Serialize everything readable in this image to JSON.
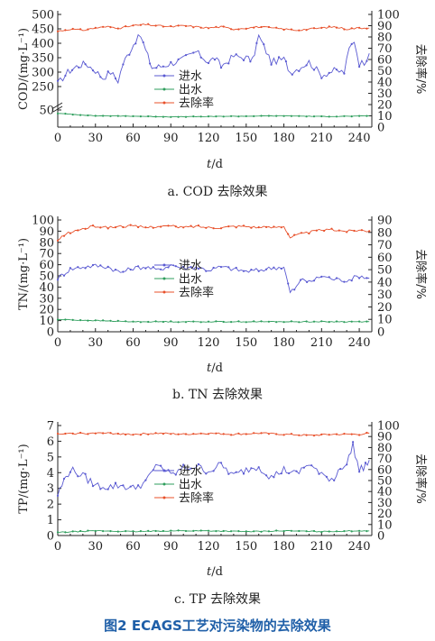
{
  "figure_caption": "图2 ECAGS工艺对污染物的去除效果",
  "colors": {
    "influent": "#5a5ad2",
    "effluent": "#2e9e5c",
    "removal": "#e8502a",
    "axis": "#222222"
  },
  "chart_data": [
    {
      "type": "line",
      "caption": "a. COD 去除效果",
      "xlabel_italic": "t",
      "xlabel_unit": "/d",
      "ylabel": "COD/(mg·L⁻¹)",
      "y2label": "去除率/%",
      "xlim": [
        0,
        250
      ],
      "xticks": [
        0,
        30,
        60,
        90,
        120,
        150,
        180,
        210,
        240
      ],
      "ylim_upper": [
        200,
        500
      ],
      "yticks_upper": [
        250,
        300,
        350,
        400,
        450,
        500
      ],
      "ylim_lower": [
        0,
        50
      ],
      "yticks_lower": [
        50
      ],
      "axis_break": true,
      "y2lim": [
        0,
        100
      ],
      "y2ticks": [
        0,
        10,
        20,
        30,
        40,
        50,
        60,
        70,
        80,
        90,
        100
      ],
      "legend": [
        "进水",
        "出水",
        "去除率"
      ],
      "series": [
        {
          "name": "进水",
          "axis": "left",
          "x": [
            0,
            8,
            15,
            22,
            30,
            36,
            42,
            48,
            52,
            57,
            62,
            66,
            70,
            75,
            82,
            90,
            100,
            110,
            120,
            125,
            130,
            140,
            150,
            155,
            160,
            170,
            180,
            185,
            190,
            200,
            210,
            220,
            228,
            232,
            236,
            240,
            244,
            248
          ],
          "y": [
            260,
            300,
            320,
            330,
            305,
            280,
            300,
            270,
            330,
            370,
            410,
            425,
            375,
            315,
            320,
            330,
            345,
            370,
            335,
            350,
            320,
            355,
            350,
            340,
            425,
            335,
            345,
            300,
            310,
            335,
            290,
            305,
            300,
            380,
            410,
            330,
            335,
            365
          ]
        },
        {
          "name": "出水",
          "axis": "left",
          "x": [
            0,
            30,
            60,
            90,
            120,
            150,
            180,
            210,
            240,
            248
          ],
          "y": [
            40,
            33,
            32,
            30,
            31,
            32,
            33,
            31,
            32,
            33
          ]
        },
        {
          "name": "去除率",
          "axis": "right",
          "x": [
            0,
            10,
            20,
            30,
            40,
            50,
            60,
            70,
            80,
            90,
            100,
            110,
            120,
            130,
            140,
            150,
            160,
            170,
            180,
            190,
            200,
            210,
            220,
            230,
            240,
            248
          ],
          "y": [
            85,
            87,
            86,
            88,
            89,
            88,
            90,
            91,
            90,
            89,
            90,
            89,
            88,
            89,
            87,
            88,
            89,
            88,
            87,
            86,
            87,
            88,
            89,
            87,
            88,
            88
          ]
        }
      ]
    },
    {
      "type": "line",
      "caption": "b. TN 去除效果",
      "xlabel_italic": "t",
      "xlabel_unit": "/d",
      "ylabel": "TN/(mg·L⁻¹)",
      "y2label": "去除率/%",
      "xlim": [
        0,
        250
      ],
      "xticks": [
        0,
        30,
        60,
        90,
        120,
        150,
        180,
        210,
        240
      ],
      "ylim": [
        0,
        100
      ],
      "yticks": [
        0,
        10,
        20,
        30,
        40,
        50,
        60,
        70,
        80,
        90,
        100
      ],
      "y2lim": [
        0,
        90
      ],
      "y2ticks": [
        0,
        10,
        20,
        30,
        40,
        50,
        60,
        70,
        80,
        90
      ],
      "legend": [
        "进水",
        "出水",
        "去除率"
      ],
      "series": [
        {
          "name": "进水",
          "axis": "left",
          "x": [
            0,
            5,
            10,
            20,
            30,
            40,
            50,
            60,
            70,
            80,
            90,
            100,
            110,
            120,
            130,
            140,
            150,
            160,
            170,
            180,
            185,
            190,
            195,
            200,
            210,
            220,
            230,
            240,
            248
          ],
          "y": [
            48,
            52,
            56,
            58,
            59,
            58,
            53,
            57,
            58,
            55,
            60,
            57,
            58,
            55,
            58,
            56,
            54,
            55,
            57,
            58,
            35,
            40,
            48,
            44,
            50,
            47,
            46,
            50,
            48
          ]
        },
        {
          "name": "出水",
          "axis": "left",
          "x": [
            0,
            30,
            60,
            90,
            120,
            150,
            180,
            210,
            240,
            248
          ],
          "y": [
            11,
            10,
            9,
            9,
            9,
            9,
            9,
            9,
            9,
            9
          ]
        },
        {
          "name": "去除率",
          "axis": "right",
          "x": [
            0,
            5,
            10,
            20,
            30,
            40,
            50,
            60,
            70,
            80,
            90,
            100,
            110,
            120,
            130,
            140,
            150,
            160,
            170,
            180,
            185,
            190,
            200,
            210,
            220,
            230,
            240,
            248
          ],
          "y": [
            73,
            78,
            80,
            83,
            85,
            84,
            85,
            85,
            84,
            85,
            85,
            84,
            85,
            84,
            84,
            85,
            85,
            84,
            84,
            85,
            76,
            78,
            80,
            82,
            82,
            81,
            82,
            81
          ]
        }
      ]
    },
    {
      "type": "line",
      "caption": "c. TP 去除效果",
      "xlabel_italic": "t",
      "xlabel_unit": "/d",
      "ylabel": "TP/(mg·L⁻¹)",
      "y2label": "去除率/%",
      "xlim": [
        0,
        250
      ],
      "xticks": [
        0,
        30,
        60,
        90,
        120,
        150,
        180,
        210,
        240
      ],
      "ylim": [
        0,
        7
      ],
      "yticks": [
        0,
        1,
        2,
        3,
        4,
        5,
        6,
        7
      ],
      "y2lim": [
        0,
        100
      ],
      "y2ticks": [
        0,
        10,
        20,
        30,
        40,
        50,
        60,
        70,
        80,
        90,
        100
      ],
      "legend": [
        "进水",
        "出水",
        "去除率"
      ],
      "series": [
        {
          "name": "进水",
          "axis": "left",
          "x": [
            0,
            5,
            10,
            20,
            30,
            40,
            50,
            60,
            70,
            80,
            90,
            100,
            110,
            120,
            130,
            140,
            150,
            160,
            170,
            180,
            190,
            200,
            210,
            220,
            225,
            230,
            235,
            240,
            245,
            248
          ],
          "y": [
            2.6,
            3.5,
            4.2,
            3.8,
            3.2,
            3.1,
            3.2,
            3.0,
            3.4,
            4.6,
            3.8,
            4.3,
            4.4,
            4.1,
            4.5,
            3.8,
            4.2,
            4.4,
            3.7,
            4.2,
            3.9,
            4.6,
            3.8,
            3.6,
            4.4,
            4.5,
            5.8,
            4.1,
            4.5,
            4.8
          ]
        },
        {
          "name": "出水",
          "axis": "left",
          "x": [
            0,
            30,
            60,
            90,
            120,
            150,
            180,
            210,
            240,
            248
          ],
          "y": [
            0.2,
            0.3,
            0.25,
            0.3,
            0.3,
            0.25,
            0.3,
            0.25,
            0.3,
            0.3
          ]
        },
        {
          "name": "去除率",
          "axis": "right",
          "x": [
            0,
            20,
            40,
            60,
            80,
            100,
            120,
            140,
            160,
            180,
            200,
            220,
            240,
            248
          ],
          "y": [
            92,
            93,
            93,
            92,
            93,
            92,
            93,
            92,
            93,
            92,
            91,
            92,
            92,
            93
          ]
        }
      ]
    }
  ]
}
